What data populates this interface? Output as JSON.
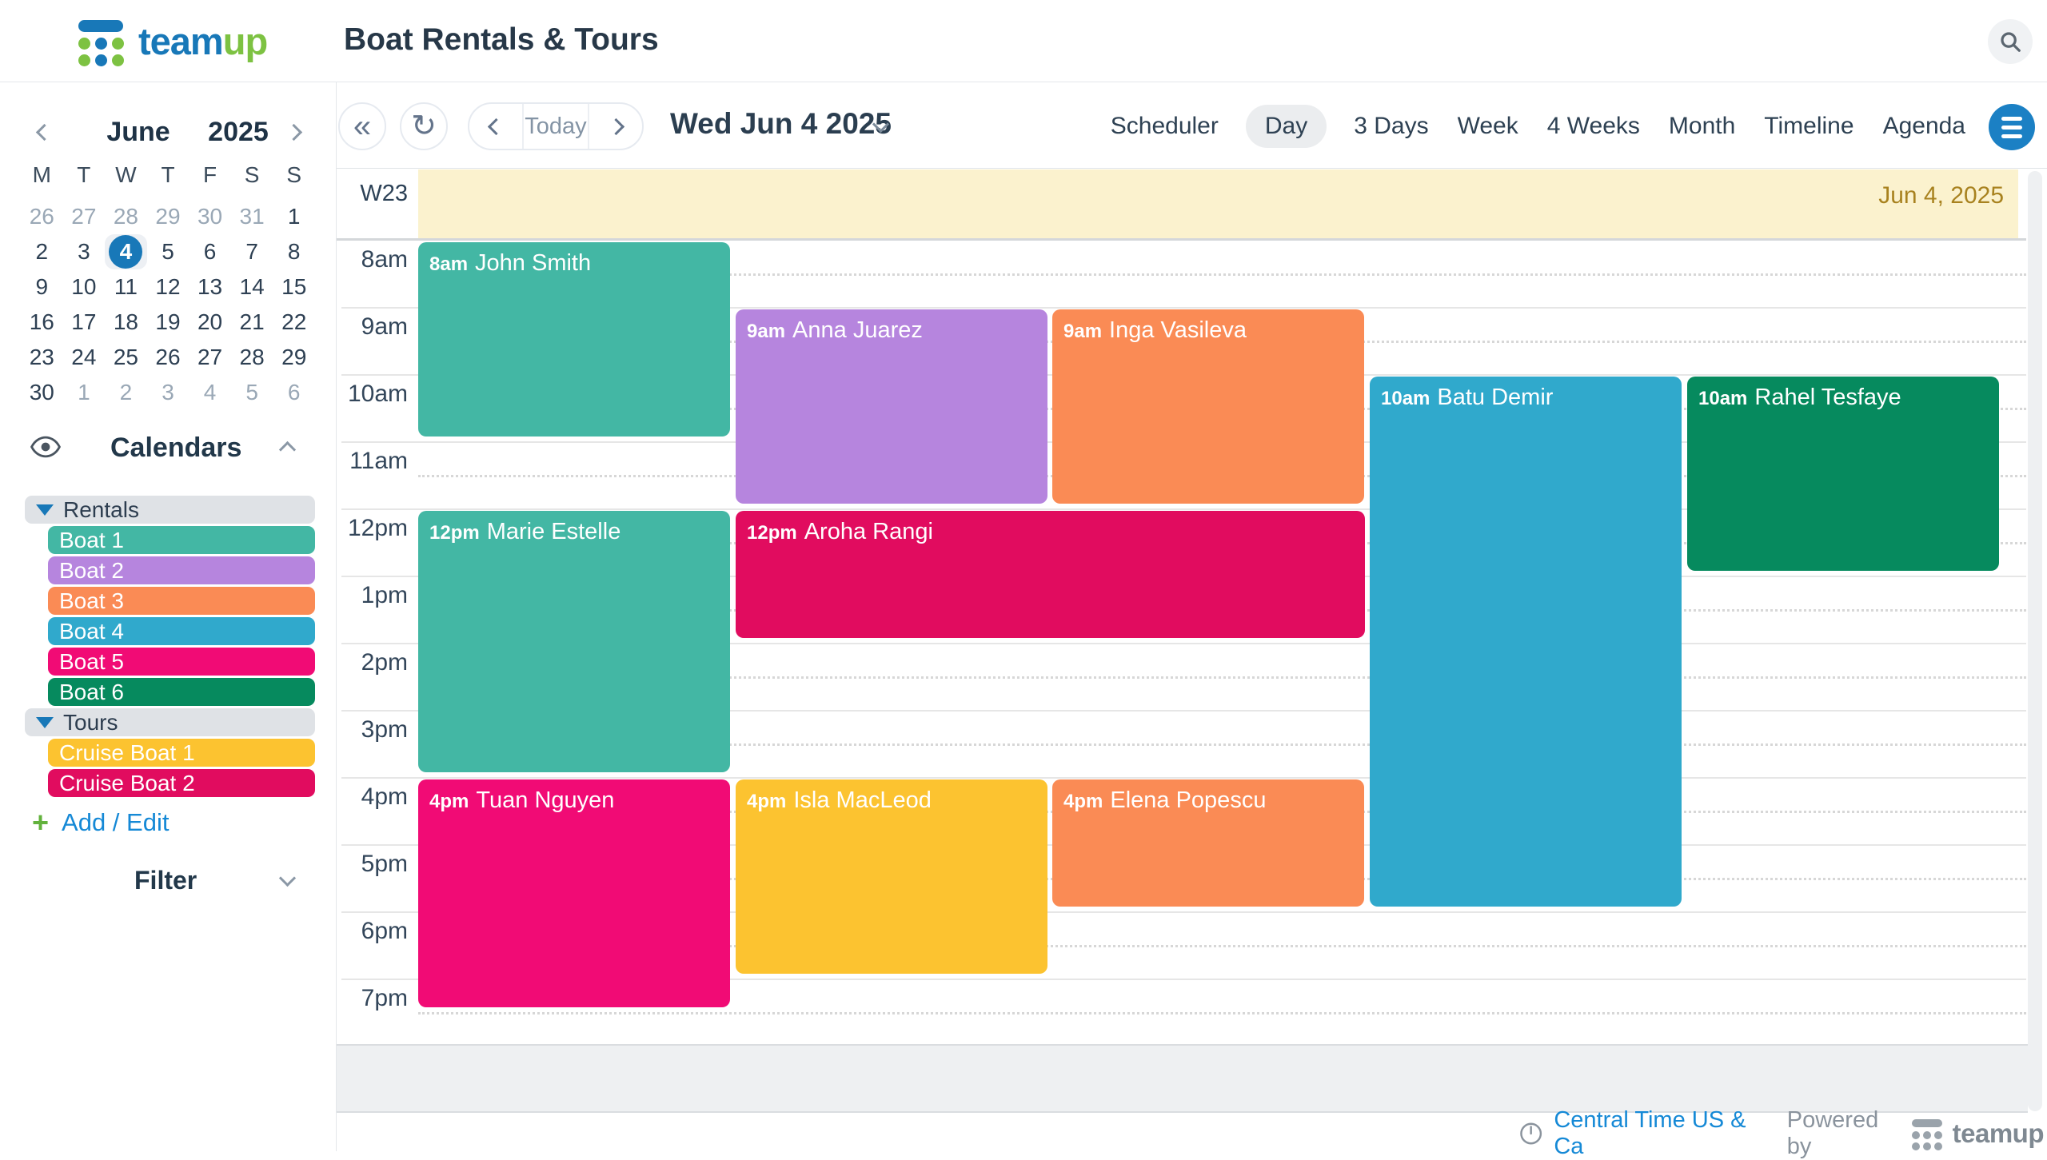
{
  "header": {
    "logo_team": "team",
    "logo_up": "up",
    "title": "Boat Rentals & Tours"
  },
  "sidebar": {
    "mini_calendar": {
      "month": "June",
      "year": "2025",
      "weekdays": [
        "M",
        "T",
        "W",
        "T",
        "F",
        "S",
        "S"
      ],
      "selected_day": 4,
      "weeks": [
        [
          {
            "d": 26,
            "m": true
          },
          {
            "d": 27,
            "m": true
          },
          {
            "d": 28,
            "m": true
          },
          {
            "d": 29,
            "m": true
          },
          {
            "d": 30,
            "m": true
          },
          {
            "d": 31,
            "m": true
          },
          {
            "d": 1
          }
        ],
        [
          {
            "d": 2
          },
          {
            "d": 3
          },
          {
            "d": 4,
            "sel": true
          },
          {
            "d": 5
          },
          {
            "d": 6
          },
          {
            "d": 7
          },
          {
            "d": 8
          }
        ],
        [
          {
            "d": 9
          },
          {
            "d": 10
          },
          {
            "d": 11
          },
          {
            "d": 12
          },
          {
            "d": 13
          },
          {
            "d": 14
          },
          {
            "d": 15
          }
        ],
        [
          {
            "d": 16
          },
          {
            "d": 17
          },
          {
            "d": 18
          },
          {
            "d": 19
          },
          {
            "d": 20
          },
          {
            "d": 21
          },
          {
            "d": 22
          }
        ],
        [
          {
            "d": 23
          },
          {
            "d": 24
          },
          {
            "d": 25
          },
          {
            "d": 26
          },
          {
            "d": 27
          },
          {
            "d": 28
          },
          {
            "d": 29
          }
        ],
        [
          {
            "d": 30
          },
          {
            "d": 1,
            "m": true
          },
          {
            "d": 2,
            "m": true
          },
          {
            "d": 3,
            "m": true
          },
          {
            "d": 4,
            "m": true
          },
          {
            "d": 5,
            "m": true
          },
          {
            "d": 6,
            "m": true
          }
        ]
      ]
    },
    "calendars": {
      "title": "Calendars",
      "groups": [
        {
          "name": "Rentals",
          "items": [
            {
              "label": "Boat 1",
              "color": "#43b7a4"
            },
            {
              "label": "Boat 2",
              "color": "#b685de"
            },
            {
              "label": "Boat 3",
              "color": "#fa8b55"
            },
            {
              "label": "Boat 4",
              "color": "#30a9cc"
            },
            {
              "label": "Boat 5",
              "color": "#f10b75"
            },
            {
              "label": "Boat 6",
              "color": "#068a5e"
            }
          ]
        },
        {
          "name": "Tours",
          "items": [
            {
              "label": "Cruise Boat 1",
              "color": "#fcc330"
            },
            {
              "label": "Cruise Boat 2",
              "color": "#e10c5f"
            }
          ]
        }
      ],
      "add_edit": "Add / Edit"
    },
    "filter": {
      "label": "Filter"
    }
  },
  "toolbar": {
    "today": "Today",
    "date_label": "Wed Jun 4 2025",
    "views": [
      "Scheduler",
      "Day",
      "3 Days",
      "Week",
      "4 Weeks",
      "Month",
      "Timeline",
      "Agenda"
    ],
    "active_view": "Day"
  },
  "grid": {
    "week_label": "W23",
    "allday_date": "Jun 4, 2025",
    "hours": [
      "8am",
      "9am",
      "10am",
      "11am",
      "12pm",
      "1pm",
      "2pm",
      "3pm",
      "4pm",
      "5pm",
      "6pm",
      "7pm"
    ],
    "events": [
      {
        "time": "8am",
        "name": "John Smith",
        "calendar": "Boat 1",
        "color": "#43b7a4",
        "start": 8,
        "end": 11,
        "col": 0,
        "span": 1
      },
      {
        "time": "9am",
        "name": "Anna Juarez",
        "calendar": "Boat 2",
        "color": "#b685de",
        "start": 9,
        "end": 12,
        "col": 1,
        "span": 1
      },
      {
        "time": "9am",
        "name": "Inga Vasileva",
        "calendar": "Boat 3",
        "color": "#fa8b55",
        "start": 9,
        "end": 12,
        "col": 2,
        "span": 1
      },
      {
        "time": "10am",
        "name": "Batu Demir",
        "calendar": "Boat 4",
        "color": "#30a9cc",
        "start": 10,
        "end": 18,
        "col": 3,
        "span": 1
      },
      {
        "time": "10am",
        "name": "Rahel Tesfaye",
        "calendar": "Boat 6",
        "color": "#068a5e",
        "start": 10,
        "end": 13,
        "col": 4,
        "span": 1
      },
      {
        "time": "12pm",
        "name": "Marie Estelle",
        "calendar": "Boat 1",
        "color": "#43b7a4",
        "start": 12,
        "end": 16,
        "col": 0,
        "span": 1
      },
      {
        "time": "12pm",
        "name": "Aroha Rangi",
        "calendar": "Cruise Boat 2",
        "color": "#e10c5f",
        "start": 12,
        "end": 14,
        "col": 1,
        "span": 2
      },
      {
        "time": "4pm",
        "name": "Tuan Nguyen",
        "calendar": "Boat 5",
        "color": "#f10b75",
        "start": 16,
        "end": 19.5,
        "col": 0,
        "span": 1
      },
      {
        "time": "4pm",
        "name": "Isla MacLeod",
        "calendar": "Cruise Boat 1",
        "color": "#fcc330",
        "start": 16,
        "end": 19,
        "col": 1,
        "span": 1
      },
      {
        "time": "4pm",
        "name": "Elena Popescu",
        "calendar": "Boat 3",
        "color": "#fa8b55",
        "start": 16,
        "end": 18,
        "col": 2,
        "span": 1
      }
    ]
  },
  "footer": {
    "timezone": "Central Time US & Ca",
    "powered_by": "Powered by",
    "brand": "teamup"
  },
  "colors": {
    "brand_blue": "#1878b8",
    "brand_green": "#7dc242",
    "allday_bg": "#fbf2ce",
    "allday_text": "#a8821f",
    "link_blue": "#1589d6",
    "selected_pill": "#ebedef",
    "menu_button": "#1b80c4"
  }
}
